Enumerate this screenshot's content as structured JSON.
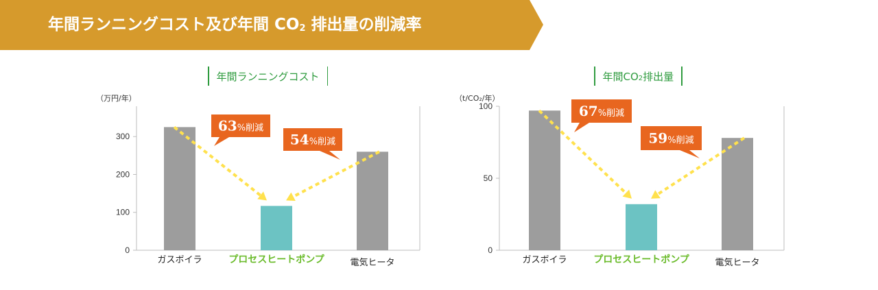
{
  "banner": {
    "title_prefix": "年間ランニングコスト及び年間 CO",
    "title_sub": "2",
    "title_suffix": " 排出量の削減率",
    "color": "#d69a2c"
  },
  "colors": {
    "bar_gray": "#9d9d9d",
    "bar_highlight": "#6cc3c3",
    "callout": "#e8661f",
    "arrow": "#ffe14d",
    "title_green": "#2e9b3e",
    "highlight_label": "#6abb2a"
  },
  "chart_data": [
    {
      "type": "bar",
      "title_prefix": "年間ランニングコスト",
      "title_sub": "",
      "title_suffix": "",
      "unit_label": "（万円/年）",
      "categories": [
        "ガスボイラ",
        "プロセスヒートポンプ",
        "電気ヒータ"
      ],
      "values": [
        325,
        117,
        260
      ],
      "highlight_index": 1,
      "ylim": [
        0,
        380
      ],
      "yticks": [
        0,
        100,
        200,
        300
      ],
      "grid": false,
      "callouts": [
        {
          "number": "63",
          "text": "%削減",
          "from": 0,
          "to": 1
        },
        {
          "number": "54",
          "text": "%削減",
          "from": 2,
          "to": 1
        }
      ]
    },
    {
      "type": "bar",
      "title_prefix": "年間CO",
      "title_sub": "2",
      "title_suffix": "排出量",
      "unit_label": "（t/CO₂/年）",
      "categories": [
        "ガスボイラ",
        "プロセスヒートポンプ",
        "電気ヒータ"
      ],
      "values": [
        97,
        32,
        78
      ],
      "highlight_index": 1,
      "ylim": [
        0,
        100
      ],
      "yticks": [
        0,
        50,
        100
      ],
      "grid": false,
      "callouts": [
        {
          "number": "67",
          "text": "%削減",
          "from": 0,
          "to": 1
        },
        {
          "number": "59",
          "text": "%削減",
          "from": 2,
          "to": 1
        }
      ]
    }
  ]
}
